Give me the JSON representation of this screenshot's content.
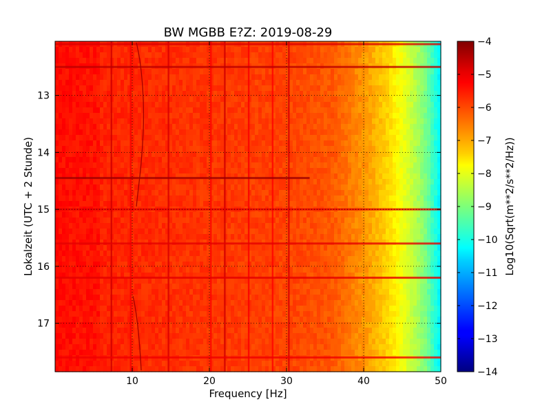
{
  "chart_data": {
    "type": "heatmap",
    "title": "BW MGBB E?Z: 2019-08-29",
    "xlabel": "Frequency [Hz]",
    "ylabel": "Lokalzeit (UTC + 2 Stunde)",
    "xlim": [
      0,
      50
    ],
    "ylim": [
      17.85,
      12.05
    ],
    "x_ticks": [
      10,
      20,
      30,
      40,
      50
    ],
    "y_ticks": [
      13,
      14,
      15,
      16,
      17
    ],
    "grid": true,
    "colormap": "jet",
    "colorbar": {
      "label": "Log10(Sqrt(m**2/s**2/Hz))",
      "range": [
        -14,
        -4
      ],
      "ticks": [
        -4,
        -5,
        -6,
        -7,
        -8,
        -9,
        -10,
        -11,
        -12,
        -13,
        -14
      ]
    },
    "baseline_level_by_frequency": [
      {
        "hz": 0,
        "value": -5.5
      },
      {
        "hz": 30,
        "value": -5.9
      },
      {
        "hz": 36,
        "value": -6.1
      },
      {
        "hz": 40,
        "value": -6.7
      },
      {
        "hz": 43,
        "value": -7.3
      },
      {
        "hz": 46,
        "value": -8.2
      },
      {
        "hz": 48,
        "value": -9.0
      },
      {
        "hz": 50,
        "value": -10.4
      }
    ],
    "persistent_lines_hz": [
      {
        "hz": 7.3,
        "value": -4.8
      },
      {
        "hz": 9.8,
        "value": -5.2
      },
      {
        "hz": 14.7,
        "value": -4.9
      },
      {
        "hz": 20.2,
        "value": -5.3
      },
      {
        "hz": 22.0,
        "value": -4.8
      },
      {
        "hz": 25.1,
        "value": -5.2
      },
      {
        "hz": 28.2,
        "value": -5.3
      },
      {
        "hz": 30.3,
        "value": -4.9
      }
    ],
    "time_events": [
      {
        "hour": 12.1,
        "value": -4.9
      },
      {
        "hour": 12.5,
        "value": -4.6
      },
      {
        "hour": 14.45,
        "value": -4.3
      },
      {
        "hour": 15.0,
        "value": -5.0
      },
      {
        "hour": 15.6,
        "value": -5.0
      },
      {
        "hour": 16.2,
        "value": -5.0
      },
      {
        "hour": 17.6,
        "value": -5.1
      }
    ]
  }
}
